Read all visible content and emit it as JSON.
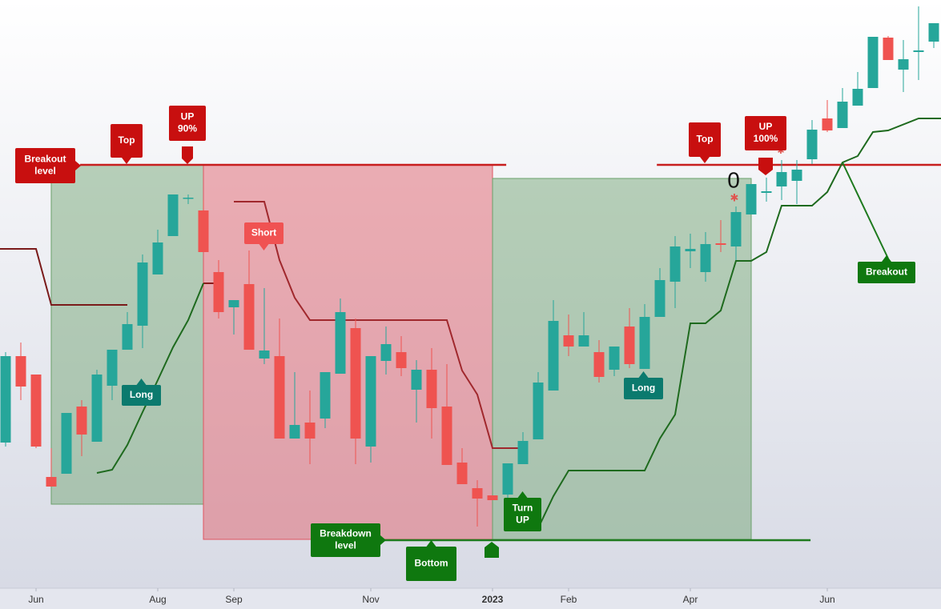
{
  "chart_data": {
    "type": "candlestick",
    "up_color": "#26a69a",
    "down_color": "#ef5350",
    "open": [
      247,
      355,
      332,
      204,
      208,
      292,
      248,
      318,
      363,
      393,
      457,
      505,
      553,
      537,
      460,
      416,
      445,
      352,
      355,
      252,
      272,
      277,
      333,
      390,
      242,
      349,
      360,
      313,
      338,
      292,
      222,
      190,
      181,
      182,
      220,
      251,
      312,
      381,
      367,
      360,
      338,
      392,
      339,
      404,
      448,
      486,
      460,
      496,
      492,
      532,
      559,
      567,
      574,
      601,
      652,
      640,
      668,
      690,
      753,
      713,
      735,
      748
    ],
    "high": [
      360,
      372,
      332,
      240,
      284,
      300,
      338,
      363,
      410,
      482,
      513,
      557,
      557,
      550,
      475,
      425,
      487,
      440,
      402,
      335,
      312,
      335,
      427,
      402,
      355,
      392,
      380,
      350,
      365,
      345,
      240,
      200,
      181,
      221,
      260,
      335,
      425,
      407,
      410,
      375,
      367,
      415,
      420,
      465,
      505,
      508,
      510,
      525,
      542,
      570,
      578,
      600,
      600,
      650,
      675,
      690,
      710,
      754,
      755,
      750,
      792,
      771
    ],
    "low": [
      242,
      300,
      240,
      192,
      208,
      230,
      248,
      300,
      363,
      365,
      457,
      505,
      545,
      485,
      402,
      382,
      363,
      345,
      252,
      252,
      220,
      265,
      333,
      220,
      222,
      332,
      330,
      272,
      252,
      219,
      195,
      142,
      175,
      170,
      220,
      251,
      312,
      355,
      367,
      322,
      330,
      340,
      339,
      404,
      415,
      465,
      448,
      485,
      475,
      532,
      548,
      550,
      545,
      595,
      635,
      640,
      668,
      690,
      725,
      685,
      700,
      740
    ],
    "close": [
      355,
      317,
      242,
      192,
      284,
      257,
      332,
      363,
      395,
      472,
      497,
      557,
      553,
      485,
      410,
      425,
      363,
      362,
      252,
      269,
      252,
      335,
      410,
      252,
      355,
      370,
      340,
      338,
      290,
      219,
      195,
      177,
      175,
      221,
      249,
      322,
      399,
      367,
      381,
      329,
      367,
      345,
      404,
      450,
      492,
      489,
      495,
      494,
      535,
      570,
      561,
      585,
      588,
      638,
      637,
      673,
      689,
      754,
      725,
      726,
      737,
      771
    ],
    "xlim": [
      0,
      61
    ],
    "ylim": [
      65,
      800
    ],
    "xticks": [
      {
        "value": 2,
        "label": "Jun"
      },
      {
        "value": 10,
        "label": "Aug"
      },
      {
        "value": 15,
        "label": "Sep"
      },
      {
        "value": 24,
        "label": "Nov"
      },
      {
        "value": 32,
        "label": "2023"
      },
      {
        "value": 37,
        "label": "Feb"
      },
      {
        "value": 45,
        "label": "Apr"
      },
      {
        "value": 54,
        "label": "Jun"
      }
    ],
    "boxes": [
      {
        "x": [
          3,
          13
        ],
        "y": [
          170,
          594
        ],
        "color": "#6aa06a"
      },
      {
        "x": [
          13,
          32
        ],
        "y": [
          126,
          594
        ],
        "color": "#e05560"
      },
      {
        "x": [
          32,
          49
        ],
        "y": [
          126,
          577
        ],
        "color": "#6aa06a"
      }
    ],
    "levels": [
      {
        "value": 594,
        "x": [
          4.9,
          32.9
        ],
        "color": "#c81e1e"
      },
      {
        "value": 594,
        "x": [
          42.8,
          61.5
        ],
        "color": "#c81e1e"
      },
      {
        "value": 125,
        "x": [
          24.6,
          52.9
        ],
        "color": "#1e7a1e"
      }
    ],
    "lines": [
      {
        "color": "#7a1a1a",
        "x": [
          -0.4,
          0,
          2,
          3,
          8
        ],
        "values": [
          489,
          489,
          489,
          419,
          419
        ]
      },
      {
        "color": "#8b1a1a",
        "x": [
          13,
          14
        ],
        "values": [
          446,
          446
        ]
      },
      {
        "color": "#a0282d",
        "x": [
          15,
          17,
          18,
          19,
          20,
          29,
          30,
          31,
          32,
          34
        ],
        "values": [
          548,
          548,
          475,
          428,
          400,
          400,
          337,
          307,
          240,
          240
        ]
      },
      {
        "color": "#1e6a1e",
        "x": [
          6,
          7,
          8,
          9,
          10,
          11,
          12,
          13
        ],
        "values": [
          209,
          213,
          244,
          285,
          325,
          366,
          400,
          446
        ]
      },
      {
        "color": "#1e6a1e",
        "x": [
          35,
          36,
          37,
          42,
          43,
          44,
          45,
          46,
          47,
          48,
          49,
          50,
          51,
          53,
          54,
          55,
          56,
          57,
          58,
          60,
          61.5
        ],
        "values": [
          140,
          180,
          212,
          212,
          252,
          282,
          396,
          396,
          412,
          474,
          474,
          485,
          543,
          543,
          560,
          597,
          605,
          635,
          637,
          652,
          652
        ]
      },
      {
        "color": "#1e7a1e",
        "x": [
          55,
          58
        ],
        "values": [
          597,
          477
        ]
      }
    ],
    "annotations": [
      {
        "text": [
          "Breakout",
          "level"
        ],
        "color": "#c80f0f"
      },
      {
        "text": [
          "Top"
        ],
        "color": "#c80f0f"
      },
      {
        "text": [
          "UP",
          "90%"
        ],
        "color": "#c80f0f"
      },
      {
        "text": [
          "Short"
        ],
        "color": "#f05252"
      },
      {
        "text": [
          "Long"
        ],
        "color": "#0b7a6e"
      },
      {
        "text": [
          "Breakdown",
          "level"
        ],
        "color": "#0f780f"
      },
      {
        "text": [
          "Bottom"
        ],
        "color": "#0f780f"
      },
      {
        "text": [
          "Turn",
          "UP"
        ],
        "color": "#0f780f"
      },
      {
        "text": [
          "Long"
        ],
        "color": "#0b7a6e"
      },
      {
        "text": [
          "Top"
        ],
        "color": "#c80f0f"
      },
      {
        "text": [
          "UP",
          "100%"
        ],
        "color": "#c80f0f"
      },
      {
        "text": [
          "Breakout"
        ],
        "color": "#0f780f"
      },
      {
        "text": [
          "0"
        ],
        "color": "#111111"
      }
    ]
  }
}
